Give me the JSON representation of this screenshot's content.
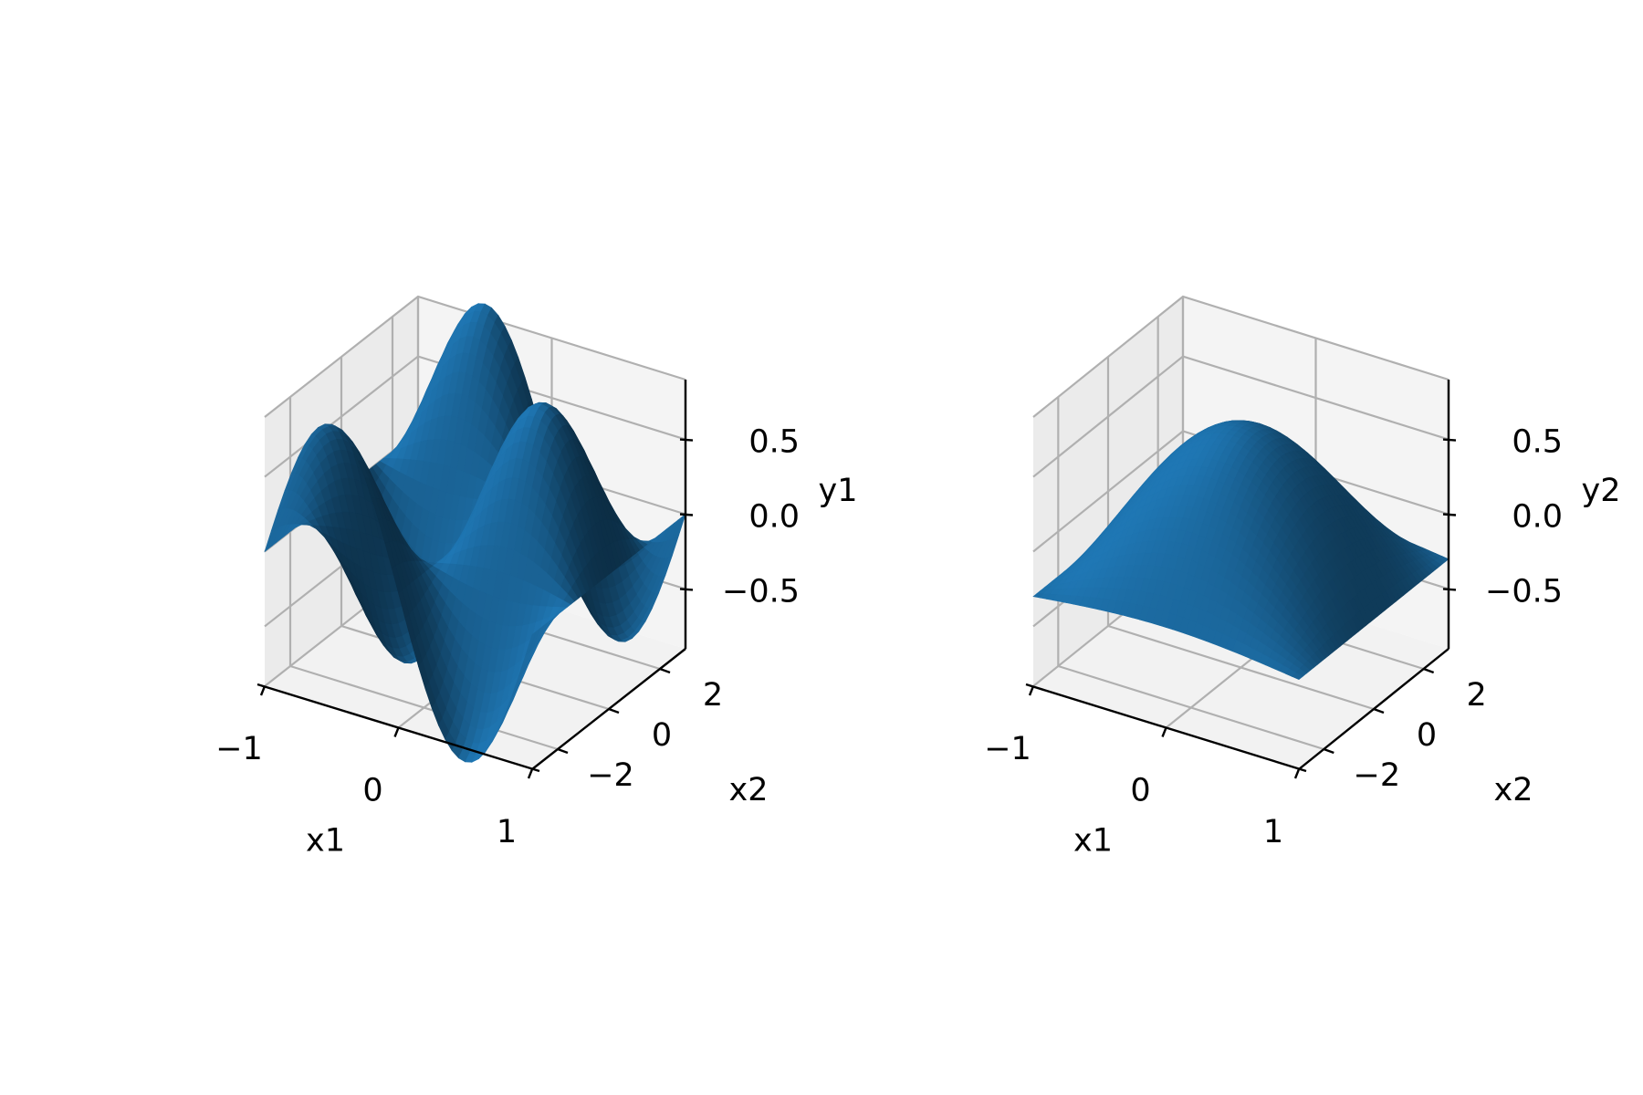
{
  "figure": {
    "background": "#ffffff"
  },
  "chart_data": [
    {
      "type": "surface",
      "surface_color": "#1f77b4",
      "pane_color": "#f2f2f2",
      "grid": true,
      "xlabel": "x1",
      "ylabel": "x2",
      "zlabel": "y1",
      "xlim": [
        -1,
        1
      ],
      "ylim": [
        -3,
        3
      ],
      "zlim": [
        -0.9,
        0.9
      ],
      "xticks": [
        -1,
        0,
        1
      ],
      "xtick_labels": [
        "−1",
        "0",
        "1"
      ],
      "yticks": [
        -2,
        0,
        2
      ],
      "ytick_labels": [
        "−2",
        "0",
        "2"
      ],
      "zticks": [
        -0.5,
        0,
        0.5
      ],
      "ztick_labels": [
        "−0.5",
        "0.0",
        "0.5"
      ],
      "x_range": [
        -1,
        1
      ],
      "y_range": [
        -3,
        3
      ],
      "function": "sin(pi*x1)*cos(x2)"
    },
    {
      "type": "surface",
      "surface_color": "#1f77b4",
      "pane_color": "#f2f2f2",
      "grid": true,
      "xlabel": "x1",
      "ylabel": "x2",
      "zlabel": "y2",
      "xlim": [
        -1,
        1
      ],
      "ylim": [
        -3,
        3
      ],
      "zlim": [
        -0.9,
        0.9
      ],
      "xticks": [
        -1,
        0,
        1
      ],
      "xtick_labels": [
        "−1",
        "0",
        "1"
      ],
      "yticks": [
        -2,
        0,
        2
      ],
      "ytick_labels": [
        "−2",
        "0",
        "2"
      ],
      "zticks": [
        -0.5,
        0,
        0.5
      ],
      "ztick_labels": [
        "−0.5",
        "0.0",
        "0.5"
      ],
      "x_range": [
        -1,
        1
      ],
      "y_range": [
        -3,
        3
      ],
      "function": "cos(pi*x1/2)*cos(x2/2)-0.3"
    }
  ]
}
